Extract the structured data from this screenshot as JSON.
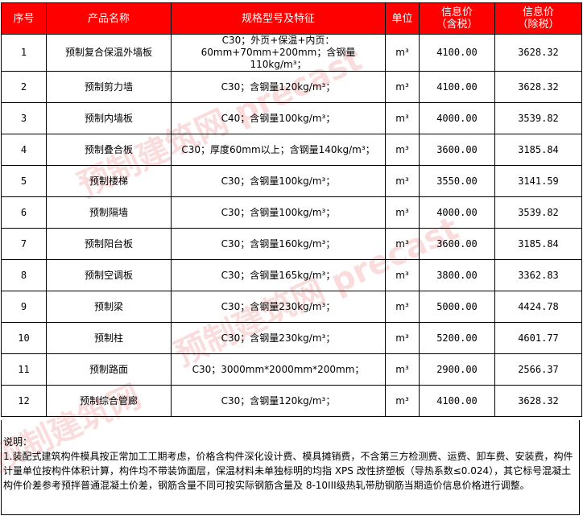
{
  "headers": [
    "序号",
    "产品名称",
    "规格型号及特征",
    "单位",
    "信息价\n（含税）",
    "信息价\n（除税）"
  ],
  "rows": [
    [
      "1",
      "预制复合保温外墙板",
      "C30；外页+保温+内页：60mm+70mm+200mm；含钢量110kg/m³；",
      "m³",
      "4100.00",
      "3628.32"
    ],
    [
      "2",
      "预制剪力墙",
      "C30；含钢量120kg/m³；",
      "m³",
      "4100.00",
      "3628.32"
    ],
    [
      "3",
      "预制内墙板",
      "C40；含钢量100kg/m³；",
      "m³",
      "4000.00",
      "3539.82"
    ],
    [
      "4",
      "预制叠合板",
      "C30；厚度60mm以上；含钢量140kg/m³；",
      "m³",
      "3600.00",
      "3185.84"
    ],
    [
      "5",
      "预制楼梯",
      "C30；含钢量100kg/m³；",
      "m³",
      "3550.00",
      "3141.59"
    ],
    [
      "6",
      "预制隔墙",
      "C30；含钢量100kg/m³；",
      "m³",
      "4000.00",
      "3539.82"
    ],
    [
      "7",
      "预制阳台板",
      "C30；含钢量160kg/m³；",
      "m³",
      "3600.00",
      "3185.84"
    ],
    [
      "8",
      "预制空调板",
      "C30；含钢量165kg/m³；",
      "m³",
      "3800.00",
      "3362.83"
    ],
    [
      "9",
      "预制梁",
      "C30；含钢量230kg/m³；",
      "m³",
      "5000.00",
      "4424.78"
    ],
    [
      "10",
      "预制柱",
      "C30；含钢量230kg/m³；",
      "m³",
      "5200.00",
      "4601.77"
    ],
    [
      "11",
      "预制路面",
      "C30；3000mm*2000mm*200mm；",
      "m³",
      "2900.00",
      "2566.37"
    ],
    [
      "12",
      "预制综合管廊",
      "C30；含钢量120kg/m³；",
      "m³",
      "4100.00",
      "3628.32"
    ]
  ],
  "notes": {
    "title": "说明：",
    "text": "1.装配式建筑构件模具按正常加工工期考虑，价格含构件深化设计费、模具摊销费，不含第三方检测费、运费、卸车费、安装费，构件计量单位按构件体积计算，构件均不带装饰面层，保温材料未单独标明的均指 XPS 改性挤塑板（导热系数≤0.024），其它标号混凝土构件价差参考预拌普通混凝土价差，钢筋含量不同可按实际钢筋含量及 8-10III级热轧带肋钢筋当期造价信息价格进行调整。"
  },
  "watermark": "预制建筑网 precast.com.cn",
  "colors": {
    "header_bg": "#ff0000",
    "header_text": "#ffffff"
  }
}
